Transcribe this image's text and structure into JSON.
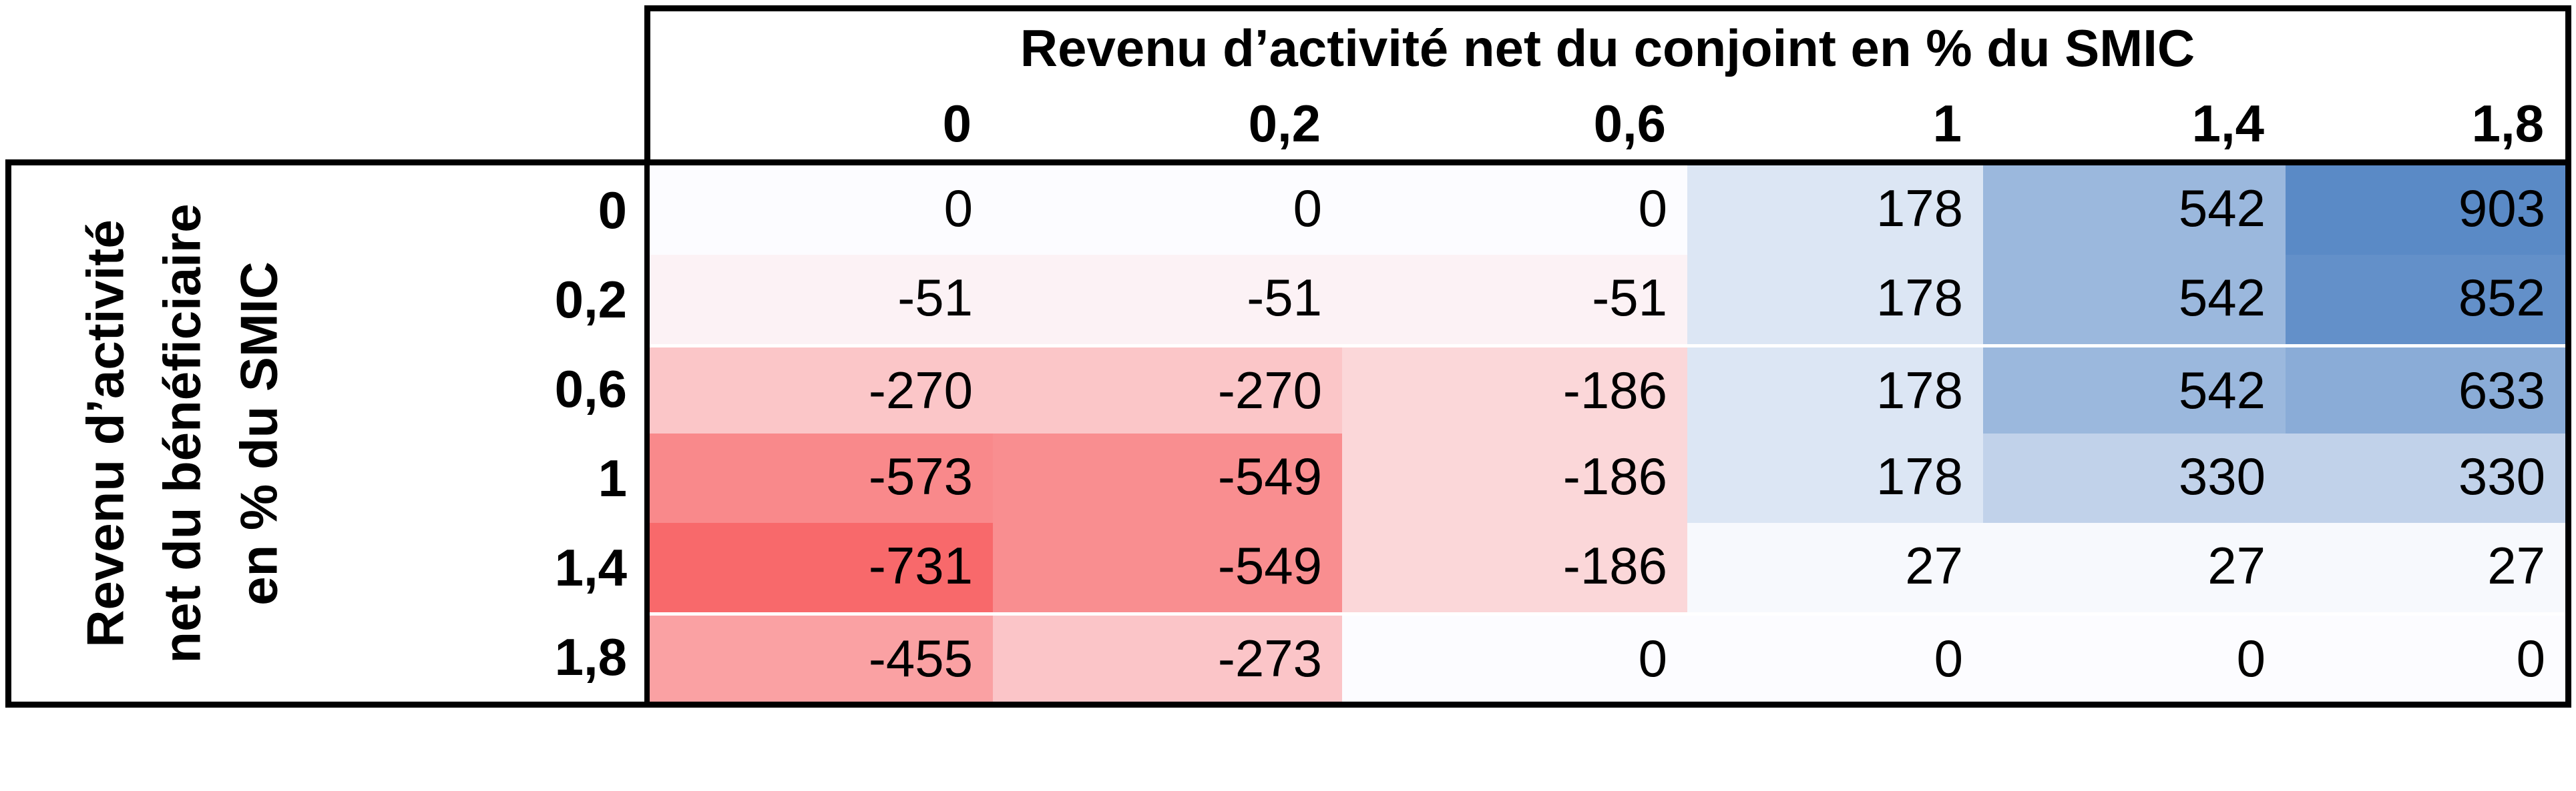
{
  "table": {
    "column_axis_title": "Revenu d’activité net du conjoint en % du SMIC",
    "row_axis_title_lines": [
      "Revenu d’activité",
      "net du bénéficiaire",
      "en % du SMIC"
    ],
    "column_labels": [
      "0",
      "0,2",
      "0,6",
      "1",
      "1,4",
      "1,8"
    ],
    "row_labels": [
      "0",
      "0,2",
      "0,6",
      "1",
      "1,4",
      "1,8"
    ]
  },
  "chart_data": {
    "type": "heatmap",
    "title": "",
    "x_axis_label": "Revenu d’activité net du conjoint en % du SMIC",
    "y_axis_label": "Revenu d’activité net du bénéficiaire en % du SMIC",
    "x_categories": [
      "0",
      "0,2",
      "0,6",
      "1",
      "1,4",
      "1,8"
    ],
    "y_categories": [
      "0",
      "0,2",
      "0,6",
      "1",
      "1,4",
      "1,8"
    ],
    "values": [
      [
        0,
        0,
        0,
        178,
        542,
        903
      ],
      [
        -51,
        -51,
        -51,
        178,
        542,
        852
      ],
      [
        -270,
        -270,
        -186,
        178,
        542,
        633
      ],
      [
        -573,
        -549,
        -186,
        178,
        330,
        330
      ],
      [
        -731,
        -549,
        -186,
        27,
        27,
        27
      ],
      [
        -455,
        -273,
        0,
        0,
        0,
        0
      ]
    ],
    "color_scale": {
      "min_value": -731,
      "mid_value": 0,
      "max_value": 903,
      "min_color": "#F8696B",
      "mid_color": "#FCFCFF",
      "max_color": "#5A8AC6"
    },
    "border_color": "#000000",
    "text_color": "#000000"
  }
}
